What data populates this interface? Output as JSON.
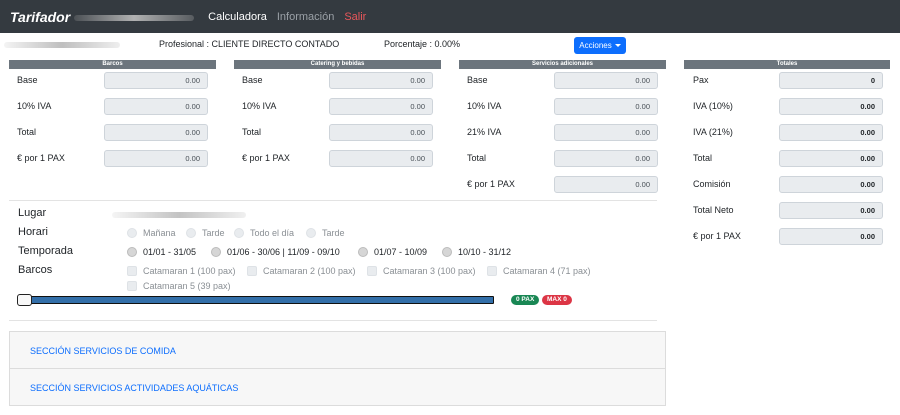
{
  "navbar": {
    "brand": "Tarifador",
    "links": [
      {
        "label": "Calculadora"
      },
      {
        "label": "Información"
      },
      {
        "label": "Salir"
      }
    ]
  },
  "info": {
    "profesional": "Profesional : CLIENTE DIRECTO CONTADO",
    "porcentaje": "Porcentaje : 0.00%",
    "acciones_label": "Acciones"
  },
  "panels": {
    "barcos": {
      "title": "Barcos",
      "rows": [
        {
          "label": "Base",
          "value": "0.00"
        },
        {
          "label": "10% IVA",
          "value": "0.00"
        },
        {
          "label": "Total",
          "value": "0.00"
        },
        {
          "label": "€ por 1 PAX",
          "value": "0.00"
        }
      ]
    },
    "catering": {
      "title": "Catering y bebidas",
      "rows": [
        {
          "label": "Base",
          "value": "0.00"
        },
        {
          "label": "10% IVA",
          "value": "0.00"
        },
        {
          "label": "Total",
          "value": "0.00"
        },
        {
          "label": "€ por 1 PAX",
          "value": "0.00"
        }
      ]
    },
    "servicios": {
      "title": "Servicios adicionales",
      "rows": [
        {
          "label": "Base",
          "value": "0.00"
        },
        {
          "label": "10% IVA",
          "value": "0.00"
        },
        {
          "label": "21% IVA",
          "value": "0.00"
        },
        {
          "label": "Total",
          "value": "0.00"
        },
        {
          "label": "€ por 1 PAX",
          "value": "0.00"
        }
      ]
    },
    "totales": {
      "title": "Totales",
      "rows": [
        {
          "label": "Pax",
          "value": "0"
        },
        {
          "label": "IVA (10%)",
          "value": "0.00"
        },
        {
          "label": "IVA (21%)",
          "value": "0.00"
        },
        {
          "label": "Total",
          "value": "0.00"
        },
        {
          "label": "Comisión",
          "value": "0.00"
        },
        {
          "label": "Total Neto",
          "value": "0.00"
        },
        {
          "label": "€ por 1 PAX",
          "value": "0.00"
        }
      ]
    }
  },
  "filters": {
    "lugar_label": "Lugar",
    "horari_label": "Horari",
    "horari_options": [
      "Mañana",
      "Tarde",
      "Todo el día",
      "Tarde"
    ],
    "temporada_label": "Temporada",
    "temporada_options": [
      "01/01 - 31/05",
      "01/06 - 30/06 | 11/09 - 09/10",
      "01/07 - 10/09",
      "10/10 - 31/12"
    ],
    "barcos_label": "Barcos",
    "barcos_options": [
      "Catamaran 1 (100 pax)",
      "Catamaran 2 (100 pax)",
      "Catamaran 3 (100 pax)",
      "Catamaran 4 (71 pax)",
      "Catamaran 5 (39 pax)"
    ]
  },
  "slider": {
    "value": 0,
    "min_badge": "0 PAX",
    "max_badge": "MAX 0"
  },
  "sections": [
    {
      "title": "SECCIÓN SERVICIOS DE COMIDA"
    },
    {
      "title": "SECCIÓN SERVICIOS ACTIVIDADES AQUÁTICAS"
    }
  ],
  "colors": {
    "navbar": "#343a40",
    "primary": "#0d6efd",
    "panel_header": "#6c757d",
    "slider": "#336fa9",
    "success": "#198754",
    "danger": "#dc3545"
  }
}
